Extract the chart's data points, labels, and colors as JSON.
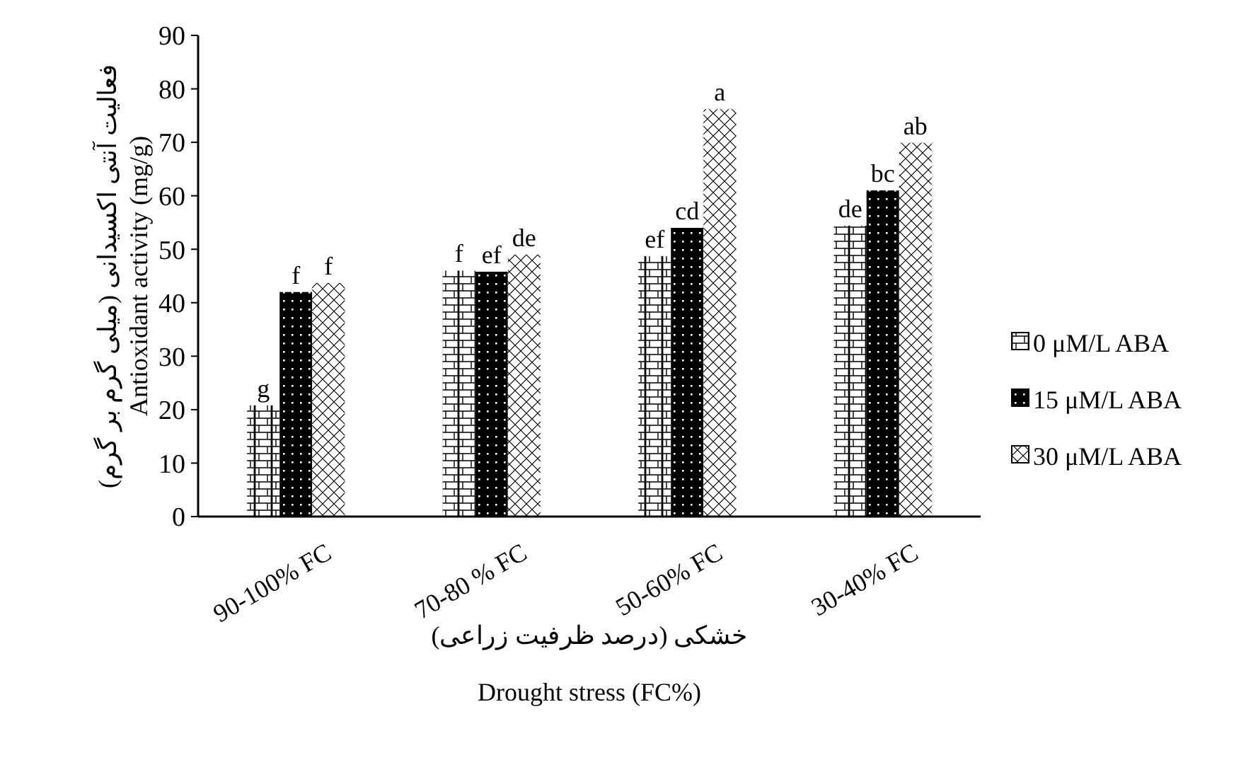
{
  "chart_data": {
    "type": "bar",
    "categories": [
      "90-100% FC",
      "70-80 % FC",
      "50-60% FC",
      "30-40% FC"
    ],
    "series": [
      {
        "name": "0 μM/L ABA",
        "color": "#ffffff",
        "values": [
          20.8,
          46,
          48.7,
          54.4
        ],
        "value_labels": [
          "g",
          "f",
          "ef",
          "de"
        ]
      },
      {
        "name": "15 μM/L ABA",
        "color": "#000000",
        "values": [
          42,
          45.8,
          54,
          61
        ],
        "value_labels": [
          "f",
          "ef",
          "cd",
          "bc"
        ]
      },
      {
        "name": "30 μM/L ABA",
        "color": "#ffffff",
        "values": [
          43.7,
          49,
          76.2,
          69.9
        ],
        "value_labels": [
          "f",
          "de",
          "a",
          "ab"
        ]
      }
    ],
    "ylim": [
      0,
      90
    ],
    "yticks": [
      0,
      10,
      20,
      30,
      40,
      50,
      60,
      70,
      80,
      90
    ],
    "grid": false,
    "legend": "right",
    "xlabel": "خشکی (درصد ظرفیت زراعی)\nDrought stress (FC%)",
    "ylabel": "فعالیت آنتی اکسیدانی (میلی گرم بر گرم)\nAntioxidant activity (mg/g)"
  }
}
